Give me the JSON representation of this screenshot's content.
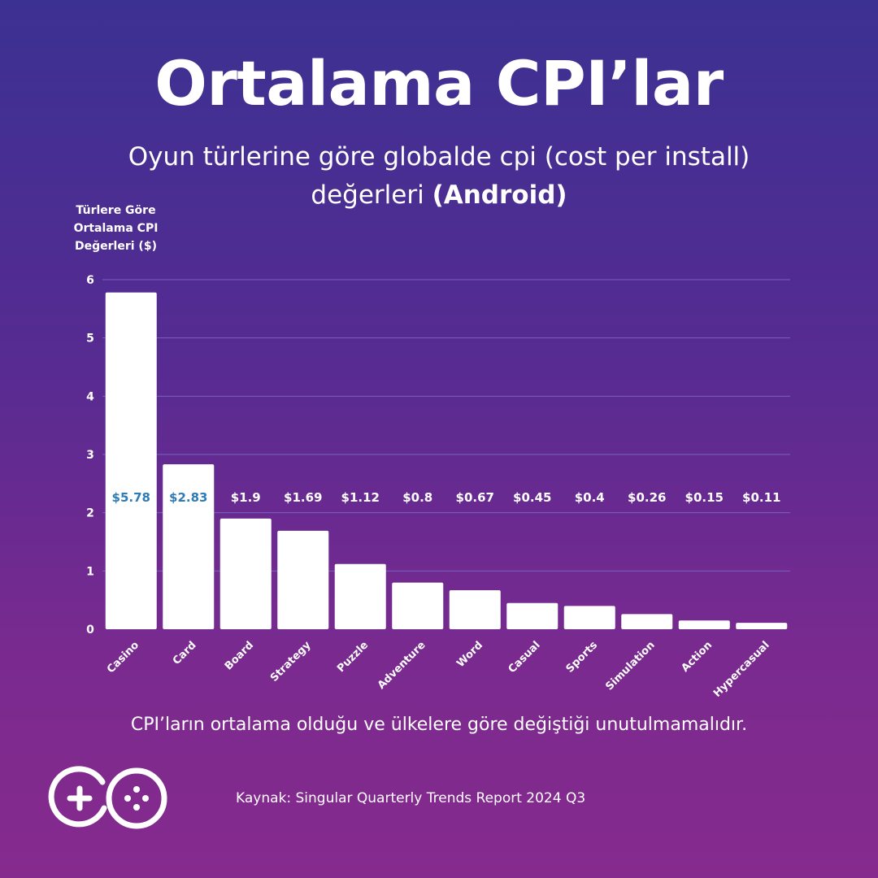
{
  "header": {
    "title": "Ortalama CPI’lar",
    "subtitle_main": "Oyun türlerine göre globalde cpi (cost per install) değerleri",
    "subtitle_bold": "(Android)"
  },
  "footer": {
    "note": "CPI’ların ortalama olduğu ve ülkelere göre değiştiği unutulmamalıdır.",
    "source": "Kaynak: Singular Quarterly Trends Report 2024 Q3",
    "logo_icon": "go-gamepad-logo-icon"
  },
  "colors": {
    "bar": "#ffffff",
    "label_inside": "#2e7bb5",
    "label_outside": "#ffffff",
    "grid": "#7a5fbf"
  },
  "chart_data": {
    "type": "bar",
    "title": "Ortalama CPI’lar",
    "ylabel": "Türlere Göre Ortalama CPI Değerleri ($)",
    "xlabel": "",
    "ylim": [
      0,
      6
    ],
    "yticks": [
      0,
      1,
      2,
      3,
      4,
      5,
      6
    ],
    "grid": true,
    "categories": [
      "Casino",
      "Card",
      "Board",
      "Strategy",
      "Puzzle",
      "Adventure",
      "Word",
      "Casual",
      "Sports",
      "Simulation",
      "Action",
      "Hypercasual"
    ],
    "values": [
      5.78,
      2.83,
      1.9,
      1.69,
      1.12,
      0.8,
      0.67,
      0.45,
      0.4,
      0.26,
      0.15,
      0.11
    ],
    "data_labels": [
      "$5.78",
      "$2.83",
      "$1.9",
      "$1.69",
      "$1.12",
      "$0.8",
      "$0.67",
      "$0.45",
      "$0.4",
      "$0.26",
      "$0.15",
      "$0.11"
    ]
  }
}
